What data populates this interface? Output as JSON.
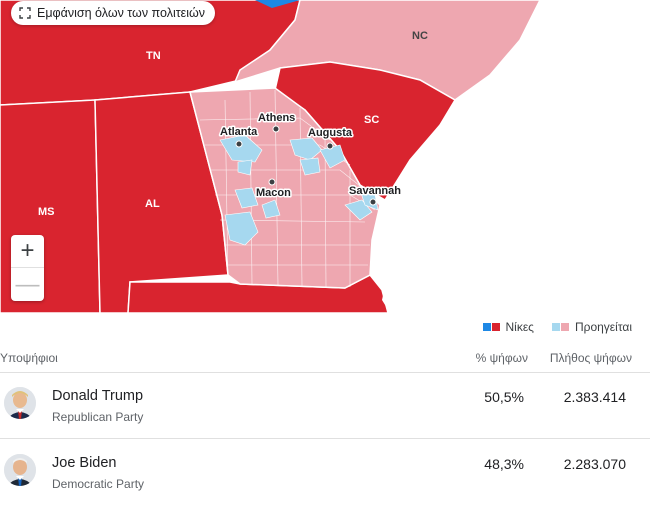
{
  "map": {
    "show_all_states_label": "Εμφάνιση όλων των πολιτειών",
    "zoom_in_label": "+",
    "zoom_out_label": "—",
    "state_labels": {
      "tn": "TN",
      "nc": "NC",
      "sc": "SC",
      "ms": "MS",
      "al": "AL"
    },
    "city_labels": {
      "atlanta": "Atlanta",
      "athens": "Athens",
      "augusta": "Augusta",
      "macon": "Macon",
      "savannah": "Savannah"
    },
    "colors": {
      "rep_win": "#d9242f",
      "rep_lead": "#eea7b0",
      "dem_lead": "#a6d8ef",
      "dem_win": "#1e88e5"
    }
  },
  "legend": {
    "wins_label": "Νίκες",
    "leading_label": "Προηγείται"
  },
  "table": {
    "headers": {
      "candidates": "Υποψήφιοι",
      "percent": "% ψήφων",
      "votes": "Πλήθος ψήφων"
    },
    "rows": [
      {
        "name": "Donald Trump",
        "party": "Republican Party",
        "percent": "50,5%",
        "votes": "2.383.414"
      },
      {
        "name": "Joe Biden",
        "party": "Democratic Party",
        "percent": "48,3%",
        "votes": "2.283.070"
      }
    ]
  }
}
